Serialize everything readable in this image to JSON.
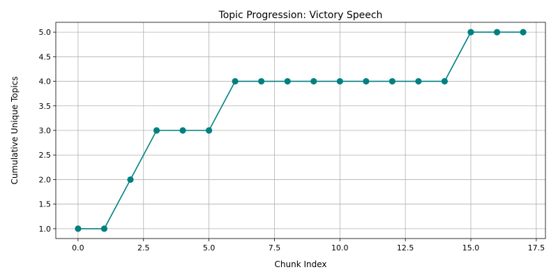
{
  "chart_data": {
    "type": "line",
    "title": "Topic Progression: Victory Speech",
    "xlabel": "Chunk Index",
    "ylabel": "Cumulative Unique Topics",
    "xlim": [
      -0.85,
      17.85
    ],
    "ylim": [
      0.8,
      5.2
    ],
    "xticks": [
      0.0,
      2.5,
      5.0,
      7.5,
      10.0,
      12.5,
      15.0,
      17.5
    ],
    "xtick_labels": [
      "0.0",
      "2.5",
      "5.0",
      "7.5",
      "10.0",
      "12.5",
      "15.0",
      "17.5"
    ],
    "yticks": [
      1.0,
      1.5,
      2.0,
      2.5,
      3.0,
      3.5,
      4.0,
      4.5,
      5.0
    ],
    "ytick_labels": [
      "1.0",
      "1.5",
      "2.0",
      "2.5",
      "3.0",
      "3.5",
      "4.0",
      "4.5",
      "5.0"
    ],
    "grid": true,
    "marker": "circle",
    "series": [
      {
        "color": "#008080",
        "x": [
          0,
          1,
          2,
          3,
          4,
          5,
          6,
          7,
          8,
          9,
          10,
          11,
          12,
          13,
          14,
          15,
          16,
          17
        ],
        "y": [
          1,
          1,
          2,
          3,
          3,
          3,
          4,
          4,
          4,
          4,
          4,
          4,
          4,
          4,
          4,
          5,
          5,
          5
        ]
      }
    ]
  }
}
